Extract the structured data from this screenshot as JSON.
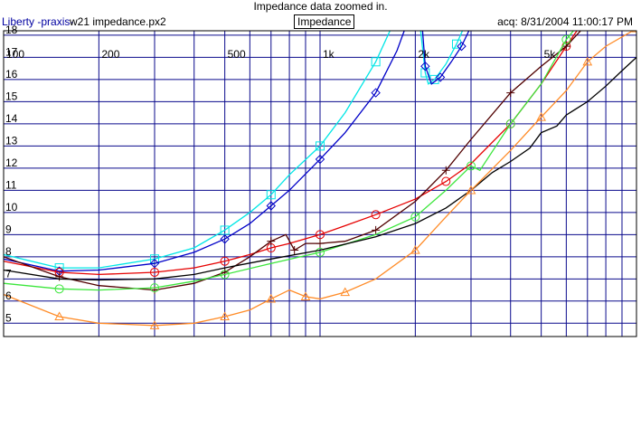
{
  "header": {
    "title": "Impedance data zoomed in.",
    "app_name": "Liberty -praxis-",
    "file_name": "w21 impedance.px2",
    "mode_button": "Impedance",
    "acquisition": "acq: 8/31/2004 11:00:17 PM"
  },
  "chart_data": {
    "type": "line",
    "title": "Impedance data zoomed in.",
    "xlabel": "",
    "ylabel": "",
    "x_scale": "log",
    "xlim": [
      100,
      10000
    ],
    "ylim": [
      4.4,
      18.2
    ],
    "grid": true,
    "x_tick_labels": [
      {
        "value": 100,
        "label": "100"
      },
      {
        "value": 200,
        "label": "200"
      },
      {
        "value": 500,
        "label": "500"
      },
      {
        "value": 1000,
        "label": "1k"
      },
      {
        "value": 2000,
        "label": "2k"
      },
      {
        "value": 5000,
        "label": "5k"
      }
    ],
    "y_ticks": [
      5,
      6,
      7,
      8,
      9,
      10,
      11,
      12,
      13,
      14,
      15,
      16,
      17,
      18
    ],
    "series": [
      {
        "color": "#00e6e6",
        "marker": "square",
        "x": [
          100,
          150,
          200,
          300,
          400,
          500,
          600,
          700,
          800,
          1000,
          1200,
          1500,
          1700,
          1850
        ],
        "y": [
          8.1,
          7.5,
          7.5,
          7.9,
          8.4,
          9.2,
          10.0,
          10.8,
          11.7,
          13.0,
          14.5,
          16.8,
          18.5,
          19.5
        ]
      },
      {
        "color": "#00e6e6",
        "marker": "square",
        "x": [
          2050,
          2150,
          2200,
          2300,
          2500,
          2700,
          2900,
          3100
        ],
        "y": [
          19.0,
          16.3,
          15.8,
          16.0,
          16.7,
          17.6,
          18.6,
          19.5
        ]
      },
      {
        "color": "#0000c8",
        "marker": "diamond",
        "x": [
          100,
          150,
          200,
          300,
          400,
          500,
          600,
          700,
          800,
          1000,
          1200,
          1500,
          1750,
          1900,
          1980
        ],
        "y": [
          7.9,
          7.35,
          7.4,
          7.7,
          8.2,
          8.8,
          9.5,
          10.3,
          11.0,
          12.4,
          13.6,
          15.4,
          17.3,
          18.7,
          19.5
        ]
      },
      {
        "color": "#0000c8",
        "marker": "diamond",
        "x": [
          2080,
          2150,
          2250,
          2400,
          2600,
          2800,
          3000,
          3200
        ],
        "y": [
          19.3,
          16.6,
          15.8,
          16.1,
          16.8,
          17.5,
          18.4,
          19.5
        ]
      },
      {
        "color": "#e60000",
        "marker": "circle",
        "x": [
          100,
          150,
          200,
          300,
          400,
          500,
          600,
          700,
          800,
          1000,
          1200,
          1500,
          2000,
          2500,
          3000,
          4000,
          5000,
          6000,
          7000
        ],
        "y": [
          7.8,
          7.3,
          7.2,
          7.3,
          7.5,
          7.8,
          8.1,
          8.4,
          8.6,
          9.0,
          9.4,
          9.9,
          10.6,
          11.4,
          12.2,
          14.0,
          15.8,
          17.5,
          18.9
        ]
      },
      {
        "color": "#500000",
        "marker": "plus",
        "x": [
          100,
          150,
          200,
          300,
          400,
          500,
          600,
          700,
          780,
          830,
          900,
          1000,
          1200,
          1500,
          2000,
          2500,
          3000,
          4000,
          5000,
          6000,
          7500
        ],
        "y": [
          8.0,
          7.1,
          6.7,
          6.5,
          6.8,
          7.3,
          8.0,
          8.7,
          9.0,
          8.3,
          8.6,
          8.6,
          8.7,
          9.2,
          10.5,
          11.9,
          13.3,
          15.4,
          16.6,
          17.5,
          19.0
        ]
      },
      {
        "color": "#3ce63c",
        "marker": "circle",
        "x": [
          100,
          150,
          200,
          300,
          400,
          500,
          700,
          1000,
          1500,
          2000,
          2500,
          3000,
          3200,
          4000,
          5000,
          6000,
          7000
        ],
        "y": [
          6.8,
          6.55,
          6.5,
          6.6,
          6.9,
          7.2,
          7.7,
          8.2,
          9.0,
          9.8,
          11.0,
          12.1,
          11.9,
          14.0,
          15.8,
          17.8,
          19.0
        ]
      },
      {
        "color": "#000000",
        "marker": "none",
        "x": [
          100,
          150,
          200,
          300,
          400,
          500,
          700,
          1000,
          1500,
          2000,
          2500,
          3000,
          3500,
          4000,
          4600,
          5000,
          5600,
          6000,
          7000,
          8000,
          9000,
          10000
        ],
        "y": [
          7.4,
          7.0,
          6.95,
          7.0,
          7.2,
          7.5,
          7.9,
          8.3,
          8.9,
          9.5,
          10.2,
          11.0,
          11.8,
          12.3,
          12.9,
          13.6,
          13.9,
          14.4,
          15.0,
          15.7,
          16.4,
          17.0
        ]
      },
      {
        "color": "#ff8c28",
        "marker": "triangle",
        "x": [
          100,
          150,
          200,
          300,
          400,
          500,
          600,
          700,
          800,
          900,
          1000,
          1200,
          1500,
          2000,
          2500,
          3000,
          4000,
          5000,
          6000,
          7000,
          8000,
          10000
        ],
        "y": [
          6.3,
          5.3,
          5.0,
          4.9,
          5.0,
          5.3,
          5.6,
          6.1,
          6.5,
          6.2,
          6.1,
          6.4,
          7.0,
          8.3,
          9.8,
          11.0,
          12.8,
          14.3,
          15.5,
          16.8,
          17.5,
          18.3
        ]
      }
    ]
  }
}
